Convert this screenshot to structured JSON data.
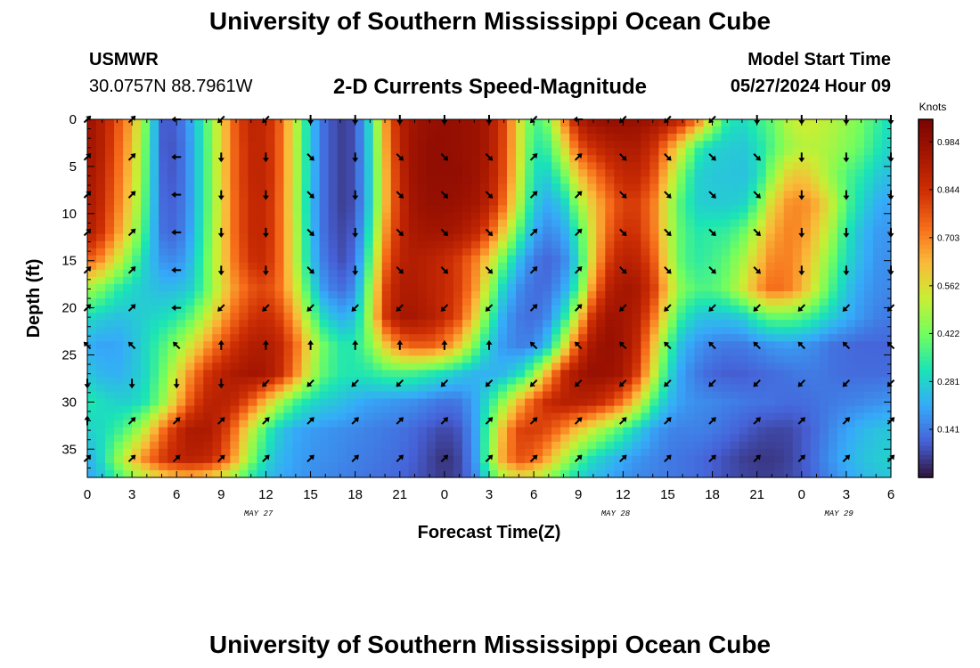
{
  "header": {
    "title": "University of Southern Mississippi Ocean Cube",
    "station": "USMWR",
    "coords": "30.0757N  88.7961W",
    "subtitle": "2-D Currents Speed-Magnitude",
    "model_start_label": "Model Start Time",
    "model_start_value": "05/27/2024 Hour 09"
  },
  "footer": {
    "title": "University of Southern Mississippi Ocean Cube"
  },
  "colorbar": {
    "unit_label": "Knots",
    "tick_labels": [
      "0.984",
      "0.844",
      "0.703",
      "0.562",
      "0.422",
      "0.281",
      "0.141"
    ]
  },
  "chart_data": {
    "type": "heatmap",
    "title": "2-D Currents Speed-Magnitude",
    "xlabel": "Forecast Time(Z)",
    "ylabel": "Depth (ft)",
    "x_tick_labels": [
      "0",
      "3",
      "6",
      "9",
      "12",
      "15",
      "18",
      "21",
      "0",
      "3",
      "6",
      "9",
      "12",
      "15",
      "18",
      "21",
      "0",
      "3",
      "6"
    ],
    "x_range_hours": [
      0,
      54
    ],
    "y_tick_labels": [
      "0",
      "5",
      "10",
      "15",
      "20",
      "25",
      "30",
      "35"
    ],
    "y_range_ft": [
      0,
      38
    ],
    "date_labels": [
      {
        "text": "MAY 27",
        "hour": 11.5
      },
      {
        "text": "MAY 28",
        "hour": 35.5
      },
      {
        "text": "MAY 29",
        "hour": 50.5
      }
    ],
    "color_range_knots": [
      0,
      1.05
    ],
    "x_hours": [
      0,
      1,
      2,
      3,
      4,
      5,
      6,
      7,
      8,
      9,
      10,
      11,
      12,
      13,
      14,
      15,
      16,
      17,
      18,
      19,
      20,
      21,
      22,
      23,
      24,
      25,
      26,
      27,
      28,
      29,
      30,
      31,
      32,
      33,
      34,
      35,
      36,
      37,
      38,
      39,
      40,
      41,
      42,
      43,
      44,
      45,
      46,
      47,
      48,
      49,
      50,
      51,
      52,
      53,
      54
    ],
    "depth_levels_ft": [
      0,
      3,
      6,
      9,
      12,
      15,
      18,
      21,
      24,
      27,
      30,
      33,
      36,
      38
    ],
    "speed_knots": [
      [
        0.97,
        0.9,
        0.78,
        0.65,
        0.4,
        0.1,
        0.1,
        0.21,
        0.38,
        0.58,
        0.78,
        0.88,
        0.87,
        0.75,
        0.52,
        0.25,
        0.11,
        0.06,
        0.08,
        0.3,
        0.66,
        0.9,
        0.96,
        0.98,
        0.99,
        0.98,
        0.97,
        0.93,
        0.8,
        0.56,
        0.36,
        0.44,
        0.7,
        0.92,
        0.98,
        0.99,
        0.99,
        0.98,
        0.96,
        0.93,
        0.87,
        0.73,
        0.51,
        0.33,
        0.3,
        0.35,
        0.4,
        0.5,
        0.54,
        0.53,
        0.5,
        0.47,
        0.42,
        0.36,
        0.3
      ],
      [
        0.96,
        0.9,
        0.76,
        0.62,
        0.38,
        0.1,
        0.09,
        0.2,
        0.37,
        0.58,
        0.77,
        0.87,
        0.87,
        0.74,
        0.51,
        0.25,
        0.11,
        0.06,
        0.08,
        0.29,
        0.64,
        0.89,
        0.97,
        0.99,
        0.99,
        0.98,
        0.97,
        0.93,
        0.79,
        0.56,
        0.33,
        0.36,
        0.55,
        0.77,
        0.85,
        0.9,
        0.92,
        0.92,
        0.85,
        0.7,
        0.53,
        0.35,
        0.28,
        0.27,
        0.26,
        0.3,
        0.38,
        0.46,
        0.5,
        0.5,
        0.48,
        0.44,
        0.4,
        0.33,
        0.28
      ],
      [
        0.95,
        0.88,
        0.74,
        0.6,
        0.37,
        0.11,
        0.09,
        0.2,
        0.37,
        0.58,
        0.77,
        0.87,
        0.88,
        0.74,
        0.51,
        0.25,
        0.11,
        0.06,
        0.08,
        0.28,
        0.62,
        0.87,
        0.97,
        0.99,
        0.99,
        0.99,
        0.97,
        0.92,
        0.78,
        0.54,
        0.3,
        0.28,
        0.4,
        0.61,
        0.71,
        0.8,
        0.87,
        0.87,
        0.79,
        0.6,
        0.41,
        0.28,
        0.26,
        0.26,
        0.25,
        0.29,
        0.45,
        0.58,
        0.62,
        0.55,
        0.46,
        0.38,
        0.33,
        0.27,
        0.24
      ],
      [
        0.94,
        0.86,
        0.72,
        0.57,
        0.35,
        0.12,
        0.1,
        0.2,
        0.37,
        0.57,
        0.76,
        0.86,
        0.87,
        0.73,
        0.5,
        0.24,
        0.11,
        0.06,
        0.08,
        0.28,
        0.62,
        0.86,
        0.96,
        0.98,
        0.98,
        0.97,
        0.95,
        0.89,
        0.73,
        0.5,
        0.27,
        0.21,
        0.27,
        0.46,
        0.61,
        0.72,
        0.81,
        0.81,
        0.72,
        0.52,
        0.36,
        0.28,
        0.27,
        0.27,
        0.28,
        0.38,
        0.58,
        0.68,
        0.7,
        0.65,
        0.53,
        0.38,
        0.29,
        0.22,
        0.2
      ],
      [
        0.92,
        0.83,
        0.68,
        0.52,
        0.32,
        0.13,
        0.11,
        0.21,
        0.38,
        0.58,
        0.76,
        0.86,
        0.87,
        0.73,
        0.51,
        0.25,
        0.11,
        0.07,
        0.1,
        0.33,
        0.67,
        0.87,
        0.94,
        0.95,
        0.95,
        0.93,
        0.88,
        0.78,
        0.58,
        0.38,
        0.21,
        0.16,
        0.2,
        0.35,
        0.58,
        0.75,
        0.84,
        0.83,
        0.73,
        0.53,
        0.38,
        0.33,
        0.34,
        0.35,
        0.4,
        0.52,
        0.65,
        0.7,
        0.69,
        0.6,
        0.48,
        0.33,
        0.24,
        0.19,
        0.18
      ],
      [
        0.76,
        0.68,
        0.54,
        0.4,
        0.27,
        0.18,
        0.16,
        0.24,
        0.4,
        0.58,
        0.74,
        0.84,
        0.86,
        0.73,
        0.51,
        0.26,
        0.13,
        0.08,
        0.12,
        0.39,
        0.73,
        0.89,
        0.91,
        0.89,
        0.86,
        0.81,
        0.72,
        0.58,
        0.39,
        0.24,
        0.14,
        0.11,
        0.15,
        0.3,
        0.6,
        0.81,
        0.9,
        0.88,
        0.78,
        0.55,
        0.38,
        0.34,
        0.36,
        0.4,
        0.48,
        0.6,
        0.7,
        0.71,
        0.66,
        0.55,
        0.42,
        0.3,
        0.23,
        0.18,
        0.17
      ],
      [
        0.48,
        0.42,
        0.34,
        0.29,
        0.26,
        0.24,
        0.24,
        0.28,
        0.4,
        0.56,
        0.69,
        0.77,
        0.8,
        0.72,
        0.55,
        0.32,
        0.17,
        0.12,
        0.17,
        0.46,
        0.8,
        0.92,
        0.92,
        0.89,
        0.86,
        0.81,
        0.69,
        0.48,
        0.27,
        0.17,
        0.12,
        0.13,
        0.2,
        0.37,
        0.7,
        0.89,
        0.95,
        0.93,
        0.83,
        0.6,
        0.43,
        0.38,
        0.38,
        0.43,
        0.53,
        0.66,
        0.74,
        0.72,
        0.64,
        0.51,
        0.37,
        0.26,
        0.2,
        0.17,
        0.16
      ],
      [
        0.3,
        0.27,
        0.25,
        0.26,
        0.28,
        0.3,
        0.33,
        0.4,
        0.52,
        0.65,
        0.76,
        0.83,
        0.86,
        0.8,
        0.65,
        0.43,
        0.28,
        0.22,
        0.25,
        0.5,
        0.82,
        0.94,
        0.94,
        0.91,
        0.86,
        0.78,
        0.6,
        0.38,
        0.2,
        0.14,
        0.12,
        0.17,
        0.31,
        0.57,
        0.86,
        0.96,
        0.95,
        0.9,
        0.74,
        0.5,
        0.33,
        0.26,
        0.25,
        0.25,
        0.27,
        0.35,
        0.4,
        0.4,
        0.38,
        0.33,
        0.27,
        0.22,
        0.18,
        0.15,
        0.14
      ],
      [
        0.22,
        0.2,
        0.2,
        0.24,
        0.3,
        0.37,
        0.45,
        0.55,
        0.67,
        0.77,
        0.85,
        0.91,
        0.92,
        0.87,
        0.74,
        0.55,
        0.4,
        0.33,
        0.33,
        0.43,
        0.6,
        0.72,
        0.76,
        0.76,
        0.71,
        0.6,
        0.43,
        0.27,
        0.18,
        0.15,
        0.16,
        0.27,
        0.52,
        0.8,
        0.95,
        0.98,
        0.96,
        0.86,
        0.63,
        0.38,
        0.23,
        0.18,
        0.15,
        0.14,
        0.14,
        0.16,
        0.18,
        0.19,
        0.18,
        0.16,
        0.13,
        0.12,
        0.11,
        0.11,
        0.11
      ],
      [
        0.26,
        0.23,
        0.22,
        0.25,
        0.3,
        0.4,
        0.55,
        0.7,
        0.82,
        0.89,
        0.93,
        0.95,
        0.94,
        0.86,
        0.7,
        0.5,
        0.38,
        0.33,
        0.32,
        0.33,
        0.36,
        0.37,
        0.36,
        0.33,
        0.3,
        0.26,
        0.23,
        0.22,
        0.24,
        0.3,
        0.44,
        0.66,
        0.85,
        0.95,
        0.98,
        0.97,
        0.94,
        0.8,
        0.55,
        0.31,
        0.19,
        0.14,
        0.11,
        0.1,
        0.1,
        0.11,
        0.12,
        0.13,
        0.14,
        0.14,
        0.13,
        0.12,
        0.12,
        0.12,
        0.12
      ],
      [
        0.33,
        0.3,
        0.28,
        0.28,
        0.33,
        0.45,
        0.62,
        0.78,
        0.88,
        0.9,
        0.86,
        0.76,
        0.62,
        0.48,
        0.37,
        0.3,
        0.27,
        0.25,
        0.22,
        0.2,
        0.19,
        0.18,
        0.17,
        0.15,
        0.13,
        0.14,
        0.2,
        0.32,
        0.47,
        0.63,
        0.77,
        0.86,
        0.9,
        0.9,
        0.88,
        0.82,
        0.72,
        0.56,
        0.37,
        0.24,
        0.19,
        0.17,
        0.16,
        0.15,
        0.14,
        0.13,
        0.13,
        0.12,
        0.12,
        0.13,
        0.14,
        0.15,
        0.16,
        0.17,
        0.18
      ],
      [
        0.28,
        0.3,
        0.35,
        0.42,
        0.55,
        0.72,
        0.85,
        0.93,
        0.93,
        0.86,
        0.71,
        0.52,
        0.36,
        0.26,
        0.21,
        0.19,
        0.18,
        0.17,
        0.16,
        0.15,
        0.14,
        0.13,
        0.11,
        0.09,
        0.07,
        0.09,
        0.18,
        0.4,
        0.65,
        0.8,
        0.82,
        0.78,
        0.7,
        0.6,
        0.52,
        0.44,
        0.36,
        0.27,
        0.2,
        0.16,
        0.15,
        0.15,
        0.14,
        0.12,
        0.1,
        0.08,
        0.07,
        0.07,
        0.09,
        0.12,
        0.16,
        0.2,
        0.23,
        0.25,
        0.26
      ],
      [
        0.22,
        0.3,
        0.45,
        0.6,
        0.72,
        0.82,
        0.88,
        0.9,
        0.88,
        0.8,
        0.64,
        0.44,
        0.3,
        0.23,
        0.2,
        0.18,
        0.17,
        0.16,
        0.15,
        0.14,
        0.13,
        0.12,
        0.1,
        0.07,
        0.04,
        0.07,
        0.17,
        0.42,
        0.68,
        0.78,
        0.75,
        0.64,
        0.5,
        0.38,
        0.3,
        0.25,
        0.21,
        0.18,
        0.16,
        0.14,
        0.13,
        0.12,
        0.1,
        0.08,
        0.06,
        0.05,
        0.05,
        0.06,
        0.09,
        0.13,
        0.18,
        0.22,
        0.25,
        0.27,
        0.28
      ],
      [
        0.2,
        0.26,
        0.36,
        0.45,
        0.52,
        0.58,
        0.62,
        0.63,
        0.6,
        0.54,
        0.44,
        0.33,
        0.25,
        0.21,
        0.19,
        0.17,
        0.16,
        0.15,
        0.14,
        0.13,
        0.12,
        0.11,
        0.09,
        0.07,
        0.05,
        0.07,
        0.15,
        0.33,
        0.5,
        0.56,
        0.53,
        0.45,
        0.36,
        0.29,
        0.24,
        0.21,
        0.18,
        0.16,
        0.15,
        0.14,
        0.13,
        0.12,
        0.1,
        0.08,
        0.07,
        0.06,
        0.06,
        0.07,
        0.09,
        0.12,
        0.16,
        0.2,
        0.23,
        0.25,
        0.26
      ]
    ],
    "arrow_x_hours": [
      0,
      3,
      6,
      9,
      12,
      15,
      18,
      21,
      24,
      27,
      30,
      33,
      36,
      39,
      42,
      45,
      48,
      51,
      54
    ],
    "arrow_depths_ft": [
      0,
      4,
      8,
      12,
      16,
      20,
      24,
      28,
      32,
      36
    ],
    "arrow_directions_deg": [
      [
        315,
        315,
        180,
        135,
        135,
        90,
        90,
        90,
        90,
        90,
        135,
        180,
        135,
        135,
        135,
        90,
        90,
        90,
        90
      ],
      [
        315,
        315,
        180,
        90,
        90,
        45,
        90,
        45,
        45,
        45,
        315,
        315,
        45,
        45,
        45,
        45,
        90,
        90,
        90
      ],
      [
        315,
        315,
        180,
        90,
        90,
        45,
        90,
        45,
        45,
        45,
        315,
        315,
        45,
        45,
        45,
        45,
        90,
        90,
        90
      ],
      [
        315,
        315,
        180,
        90,
        90,
        45,
        90,
        45,
        45,
        45,
        315,
        315,
        45,
        45,
        45,
        45,
        90,
        90,
        90
      ],
      [
        315,
        315,
        180,
        90,
        90,
        45,
        90,
        45,
        45,
        45,
        315,
        315,
        45,
        45,
        45,
        45,
        90,
        90,
        90
      ],
      [
        315,
        315,
        180,
        135,
        135,
        135,
        135,
        135,
        135,
        135,
        315,
        315,
        135,
        135,
        135,
        135,
        135,
        135,
        135
      ],
      [
        225,
        225,
        225,
        270,
        270,
        270,
        270,
        270,
        270,
        270,
        225,
        225,
        225,
        225,
        225,
        225,
        225,
        225,
        225
      ],
      [
        90,
        90,
        90,
        90,
        135,
        135,
        135,
        135,
        135,
        135,
        135,
        135,
        135,
        135,
        135,
        135,
        135,
        135,
        135
      ],
      [
        270,
        315,
        315,
        315,
        315,
        315,
        315,
        315,
        315,
        315,
        315,
        315,
        315,
        315,
        315,
        315,
        315,
        315,
        315
      ],
      [
        315,
        315,
        315,
        315,
        315,
        315,
        315,
        315,
        315,
        315,
        315,
        315,
        315,
        315,
        315,
        315,
        315,
        315,
        315
      ]
    ]
  }
}
